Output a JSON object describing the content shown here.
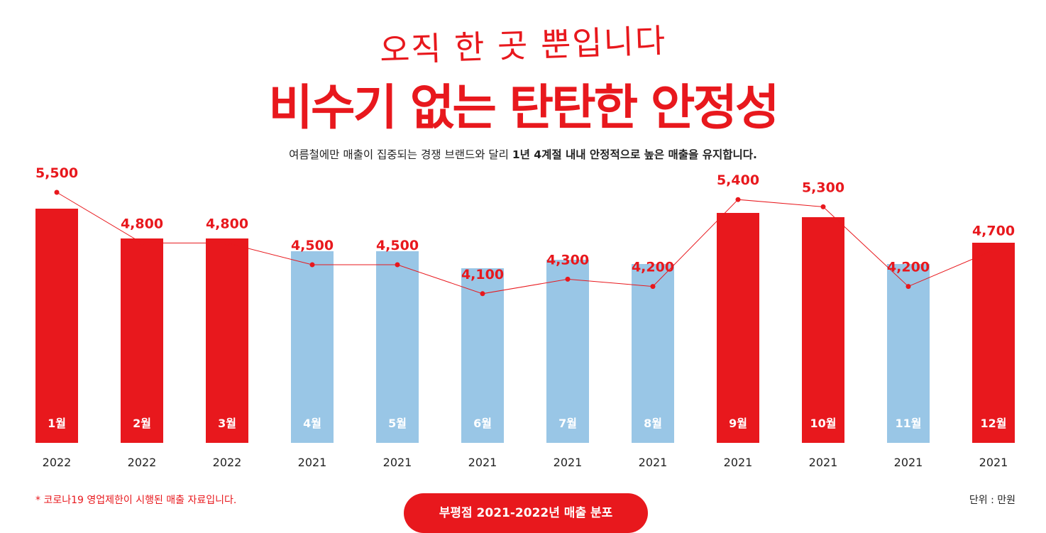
{
  "header": {
    "tagline": "오직 한 곳 뿐입니다",
    "headline": "비수기 없는 탄탄한 안정성",
    "subtitle_regular": "여름철에만 매출이 집중되는 경쟁 브랜드와 달리 ",
    "subtitle_bold": "1년 4계절 내내 안정적으로 높은 매출을 유지합니다."
  },
  "footer": {
    "note": "* 코로나19 영업제한이 시행된 매출 자료입니다.",
    "unit": "단위 : 만원",
    "button_label": "부평점 2021-2022년 매출 분포"
  },
  "colors": {
    "accent": "#e8181d",
    "highlight_bar": "#e8181d",
    "normal_bar": "#99c6e6",
    "line": "#e8181d"
  },
  "chart_data": {
    "type": "bar",
    "categories": [
      "1월",
      "2월",
      "3월",
      "4월",
      "5월",
      "6월",
      "7월",
      "8월",
      "9월",
      "10월",
      "11월",
      "12월"
    ],
    "years": [
      "2022",
      "2022",
      "2022",
      "2021",
      "2021",
      "2021",
      "2021",
      "2021",
      "2021",
      "2021",
      "2021",
      "2021"
    ],
    "values": [
      5500,
      4800,
      4800,
      4500,
      4500,
      4100,
      4300,
      4200,
      5400,
      5300,
      4200,
      4700
    ],
    "value_labels": [
      "5,500",
      "4,800",
      "4,800",
      "4,500",
      "4,500",
      "4,100",
      "4,300",
      "4,200",
      "5,400",
      "5,300",
      "4,200",
      "4,700"
    ],
    "highlighted": [
      true,
      true,
      true,
      false,
      false,
      false,
      false,
      false,
      true,
      true,
      false,
      true
    ],
    "overlay": "line",
    "grid": false,
    "legend": "none"
  }
}
